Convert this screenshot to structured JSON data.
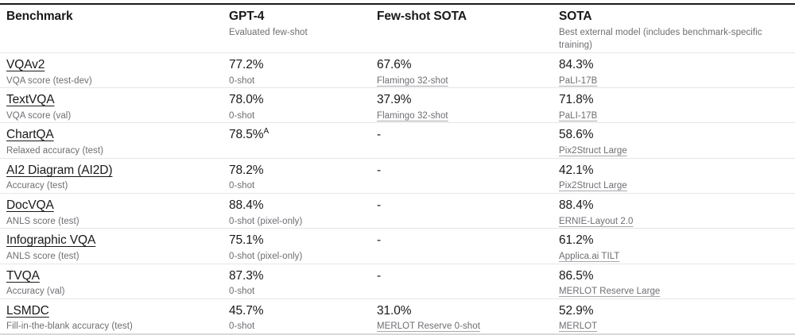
{
  "table": {
    "columns": [
      {
        "label": "Benchmark",
        "sublabel": ""
      },
      {
        "label": "GPT-4",
        "sublabel": "Evaluated few-shot"
      },
      {
        "label": "Few-shot SOTA",
        "sublabel": ""
      },
      {
        "label": "SOTA",
        "sublabel": "Best external model (includes benchmark-specific training)"
      }
    ],
    "rows": [
      {
        "benchmark": "VQAv2",
        "metric": "VQA score (test-dev)",
        "gpt4": "77.2%",
        "gpt4_sup": "",
        "gpt4_sub": "0-shot",
        "fewshot": "67.6%",
        "fewshot_sub": "Flamingo 32-shot",
        "sota": "84.3%",
        "sota_sub": "PaLI-17B"
      },
      {
        "benchmark": "TextVQA",
        "metric": "VQA score (val)",
        "gpt4": "78.0%",
        "gpt4_sup": "",
        "gpt4_sub": "0-shot",
        "fewshot": "37.9%",
        "fewshot_sub": "Flamingo 32-shot",
        "sota": "71.8%",
        "sota_sub": "PaLI-17B"
      },
      {
        "benchmark": "ChartQA",
        "metric": "Relaxed accuracy (test)",
        "gpt4": "78.5%",
        "gpt4_sup": "A",
        "gpt4_sub": "",
        "fewshot": "-",
        "fewshot_sub": "",
        "sota": "58.6%",
        "sota_sub": "Pix2Struct Large"
      },
      {
        "benchmark": "AI2 Diagram (AI2D)",
        "metric": "Accuracy (test)",
        "gpt4": "78.2%",
        "gpt4_sup": "",
        "gpt4_sub": "0-shot",
        "fewshot": "-",
        "fewshot_sub": "",
        "sota": "42.1%",
        "sota_sub": "Pix2Struct Large"
      },
      {
        "benchmark": "DocVQA",
        "metric": "ANLS score (test)",
        "gpt4": "88.4%",
        "gpt4_sup": "",
        "gpt4_sub": "0-shot (pixel-only)",
        "fewshot": "-",
        "fewshot_sub": "",
        "sota": "88.4%",
        "sota_sub": "ERNIE-Layout 2.0"
      },
      {
        "benchmark": "Infographic VQA",
        "metric": "ANLS score (test)",
        "gpt4": "75.1%",
        "gpt4_sup": "",
        "gpt4_sub": "0-shot (pixel-only)",
        "fewshot": "-",
        "fewshot_sub": "",
        "sota": "61.2%",
        "sota_sub": "Applica.ai TILT"
      },
      {
        "benchmark": "TVQA",
        "metric": "Accuracy (val)",
        "gpt4": "87.3%",
        "gpt4_sup": "",
        "gpt4_sub": "0-shot",
        "fewshot": "-",
        "fewshot_sub": "",
        "sota": "86.5%",
        "sota_sub": "MERLOT Reserve Large"
      },
      {
        "benchmark": "LSMDC",
        "metric": "Fill-in-the-blank accuracy (test)",
        "gpt4": "45.7%",
        "gpt4_sup": "",
        "gpt4_sub": "0-shot",
        "fewshot": "31.0%",
        "fewshot_sub": "MERLOT Reserve 0-shot",
        "sota": "52.9%",
        "sota_sub": "MERLOT"
      }
    ]
  }
}
